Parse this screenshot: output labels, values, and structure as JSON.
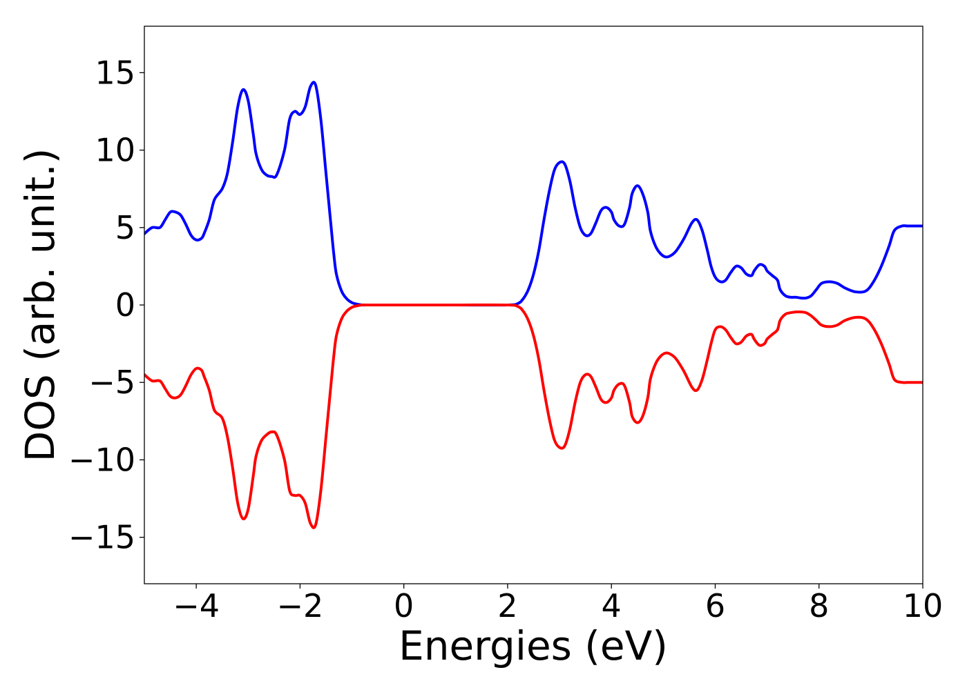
{
  "chart_data": {
    "type": "line",
    "xlabel": "Energies (eV)",
    "ylabel": "DOS (arb. unit.)",
    "xlim": [
      -5,
      10
    ],
    "ylim": [
      -18,
      18
    ],
    "grid": false,
    "x_ticks": [
      -4,
      -2,
      0,
      2,
      4,
      6,
      8,
      10
    ],
    "x_tick_labels": [
      "−4",
      "−2",
      "0",
      "2",
      "4",
      "6",
      "8",
      "10"
    ],
    "y_ticks": [
      -15,
      -10,
      -5,
      0,
      5,
      10,
      15
    ],
    "y_tick_labels": [
      "−15",
      "−10",
      "−5",
      "0",
      "5",
      "10",
      "15"
    ],
    "series": [
      {
        "color": "#0000ff",
        "x": [
          -5.0,
          -4.85,
          -4.7,
          -4.6,
          -4.5,
          -4.4,
          -4.3,
          -4.2,
          -4.1,
          -4.0,
          -3.9,
          -3.85,
          -3.75,
          -3.65,
          -3.5,
          -3.4,
          -3.3,
          -3.2,
          -3.1,
          -3.0,
          -2.9,
          -2.85,
          -2.75,
          -2.65,
          -2.55,
          -2.45,
          -2.3,
          -2.2,
          -2.1,
          -2.0,
          -1.9,
          -1.8,
          -1.7,
          -1.6,
          -1.5,
          -1.4,
          -1.35,
          -1.3,
          -1.2,
          -1.1,
          -1.0,
          -0.9,
          -0.8,
          -0.7,
          -0.6,
          -0.5,
          -0.4,
          0.0,
          1.0,
          2.0,
          2.2,
          2.3,
          2.4,
          2.5,
          2.6,
          2.7,
          2.8,
          2.9,
          3.0,
          3.1,
          3.2,
          3.3,
          3.4,
          3.5,
          3.6,
          3.7,
          3.8,
          3.9,
          4.0,
          4.05,
          4.15,
          4.25,
          4.35,
          4.4,
          4.5,
          4.6,
          4.7,
          4.75,
          4.85,
          4.95,
          5.05,
          5.15,
          5.25,
          5.4,
          5.55,
          5.65,
          5.75,
          5.85,
          5.92,
          6.0,
          6.1,
          6.2,
          6.3,
          6.4,
          6.5,
          6.6,
          6.7,
          6.75,
          6.85,
          6.95,
          7.0,
          7.1,
          7.2,
          7.25,
          7.35,
          7.45,
          7.55,
          7.65,
          7.75,
          7.85,
          7.95,
          8.05,
          8.2,
          8.35,
          8.5,
          8.7,
          8.9,
          9.05,
          9.2,
          9.35,
          9.45,
          9.6,
          9.7,
          9.8,
          9.9,
          10.0
        ],
        "values": [
          4.6,
          5.0,
          5.0,
          5.5,
          6.0,
          6.0,
          5.8,
          5.2,
          4.5,
          4.2,
          4.3,
          4.6,
          5.5,
          6.8,
          7.5,
          8.5,
          10.5,
          12.8,
          13.9,
          13.2,
          11.0,
          9.8,
          8.8,
          8.4,
          8.3,
          8.4,
          10.0,
          12.0,
          12.5,
          12.3,
          12.8,
          14.1,
          14.2,
          12.0,
          8.5,
          5.0,
          3.3,
          2.0,
          0.9,
          0.4,
          0.15,
          0.05,
          0.0,
          0.0,
          0.0,
          0.0,
          0.0,
          0.0,
          0.0,
          0.0,
          0.1,
          0.4,
          1.0,
          2.0,
          3.5,
          5.5,
          7.3,
          8.7,
          9.2,
          9.1,
          8.0,
          6.3,
          5.0,
          4.5,
          4.6,
          5.3,
          6.1,
          6.3,
          6.0,
          5.5,
          5.1,
          5.2,
          6.3,
          7.2,
          7.7,
          7.2,
          6.0,
          4.8,
          3.8,
          3.3,
          3.1,
          3.2,
          3.5,
          4.3,
          5.3,
          5.5,
          4.8,
          3.5,
          2.5,
          1.8,
          1.5,
          1.6,
          2.1,
          2.5,
          2.4,
          2.0,
          1.9,
          2.2,
          2.6,
          2.5,
          2.2,
          1.9,
          1.6,
          1.0,
          0.6,
          0.5,
          0.5,
          0.45,
          0.45,
          0.6,
          1.0,
          1.4,
          1.5,
          1.4,
          1.1,
          0.85,
          0.9,
          1.5,
          2.5,
          3.8,
          4.8,
          5.1,
          5.1,
          5.1,
          5.1,
          5.1
        ]
      },
      {
        "color": "#ff0000",
        "x": [
          -5.0,
          -4.85,
          -4.7,
          -4.6,
          -4.5,
          -4.4,
          -4.3,
          -4.2,
          -4.1,
          -4.0,
          -3.9,
          -3.85,
          -3.75,
          -3.65,
          -3.5,
          -3.4,
          -3.3,
          -3.2,
          -3.1,
          -3.0,
          -2.9,
          -2.85,
          -2.75,
          -2.65,
          -2.55,
          -2.45,
          -2.3,
          -2.2,
          -2.1,
          -2.0,
          -1.9,
          -1.8,
          -1.7,
          -1.6,
          -1.5,
          -1.4,
          -1.35,
          -1.3,
          -1.2,
          -1.1,
          -1.0,
          -0.9,
          -0.8,
          -0.7,
          -0.6,
          -0.5,
          -0.4,
          0.0,
          1.0,
          2.0,
          2.2,
          2.3,
          2.4,
          2.5,
          2.6,
          2.7,
          2.8,
          2.9,
          3.0,
          3.1,
          3.2,
          3.3,
          3.4,
          3.5,
          3.6,
          3.7,
          3.8,
          3.9,
          4.0,
          4.05,
          4.15,
          4.25,
          4.35,
          4.4,
          4.5,
          4.6,
          4.7,
          4.75,
          4.85,
          4.95,
          5.05,
          5.15,
          5.25,
          5.4,
          5.55,
          5.65,
          5.75,
          5.85,
          5.92,
          6.0,
          6.1,
          6.2,
          6.3,
          6.4,
          6.5,
          6.6,
          6.7,
          6.75,
          6.85,
          6.95,
          7.0,
          7.1,
          7.2,
          7.25,
          7.35,
          7.45,
          7.55,
          7.65,
          7.75,
          7.85,
          7.95,
          8.05,
          8.2,
          8.35,
          8.5,
          8.7,
          8.9,
          9.05,
          9.2,
          9.35,
          9.45,
          9.6,
          9.7,
          9.8,
          9.9,
          10.0
        ],
        "values": [
          -4.5,
          -4.9,
          -4.9,
          -5.4,
          -5.9,
          -6.0,
          -5.8,
          -5.2,
          -4.5,
          -4.1,
          -4.2,
          -4.6,
          -5.5,
          -6.8,
          -7.3,
          -8.5,
          -10.5,
          -12.8,
          -13.8,
          -13.2,
          -11.0,
          -9.8,
          -8.8,
          -8.4,
          -8.2,
          -8.4,
          -10.0,
          -12.0,
          -12.3,
          -12.3,
          -12.8,
          -14.1,
          -14.2,
          -12.0,
          -8.5,
          -5.0,
          -3.3,
          -2.0,
          -0.9,
          -0.4,
          -0.15,
          -0.05,
          0.0,
          0.0,
          0.0,
          0.0,
          0.0,
          0.0,
          0.0,
          0.0,
          -0.1,
          -0.4,
          -1.0,
          -2.0,
          -3.5,
          -5.5,
          -7.3,
          -8.7,
          -9.2,
          -9.1,
          -8.0,
          -6.3,
          -5.0,
          -4.5,
          -4.6,
          -5.3,
          -6.1,
          -6.3,
          -6.0,
          -5.5,
          -5.1,
          -5.2,
          -6.3,
          -7.2,
          -7.6,
          -7.2,
          -6.0,
          -4.8,
          -3.8,
          -3.3,
          -3.1,
          -3.2,
          -3.5,
          -4.3,
          -5.3,
          -5.5,
          -4.8,
          -3.5,
          -2.5,
          -1.6,
          -1.4,
          -1.6,
          -2.1,
          -2.5,
          -2.4,
          -2.0,
          -1.9,
          -2.2,
          -2.6,
          -2.5,
          -2.2,
          -1.9,
          -1.6,
          -1.0,
          -0.6,
          -0.5,
          -0.45,
          -0.45,
          -0.5,
          -0.7,
          -1.0,
          -1.3,
          -1.4,
          -1.3,
          -1.0,
          -0.8,
          -0.9,
          -1.5,
          -2.5,
          -3.8,
          -4.8,
          -5.0,
          -5.0,
          -5.0,
          -5.0,
          -5.0
        ]
      }
    ]
  }
}
